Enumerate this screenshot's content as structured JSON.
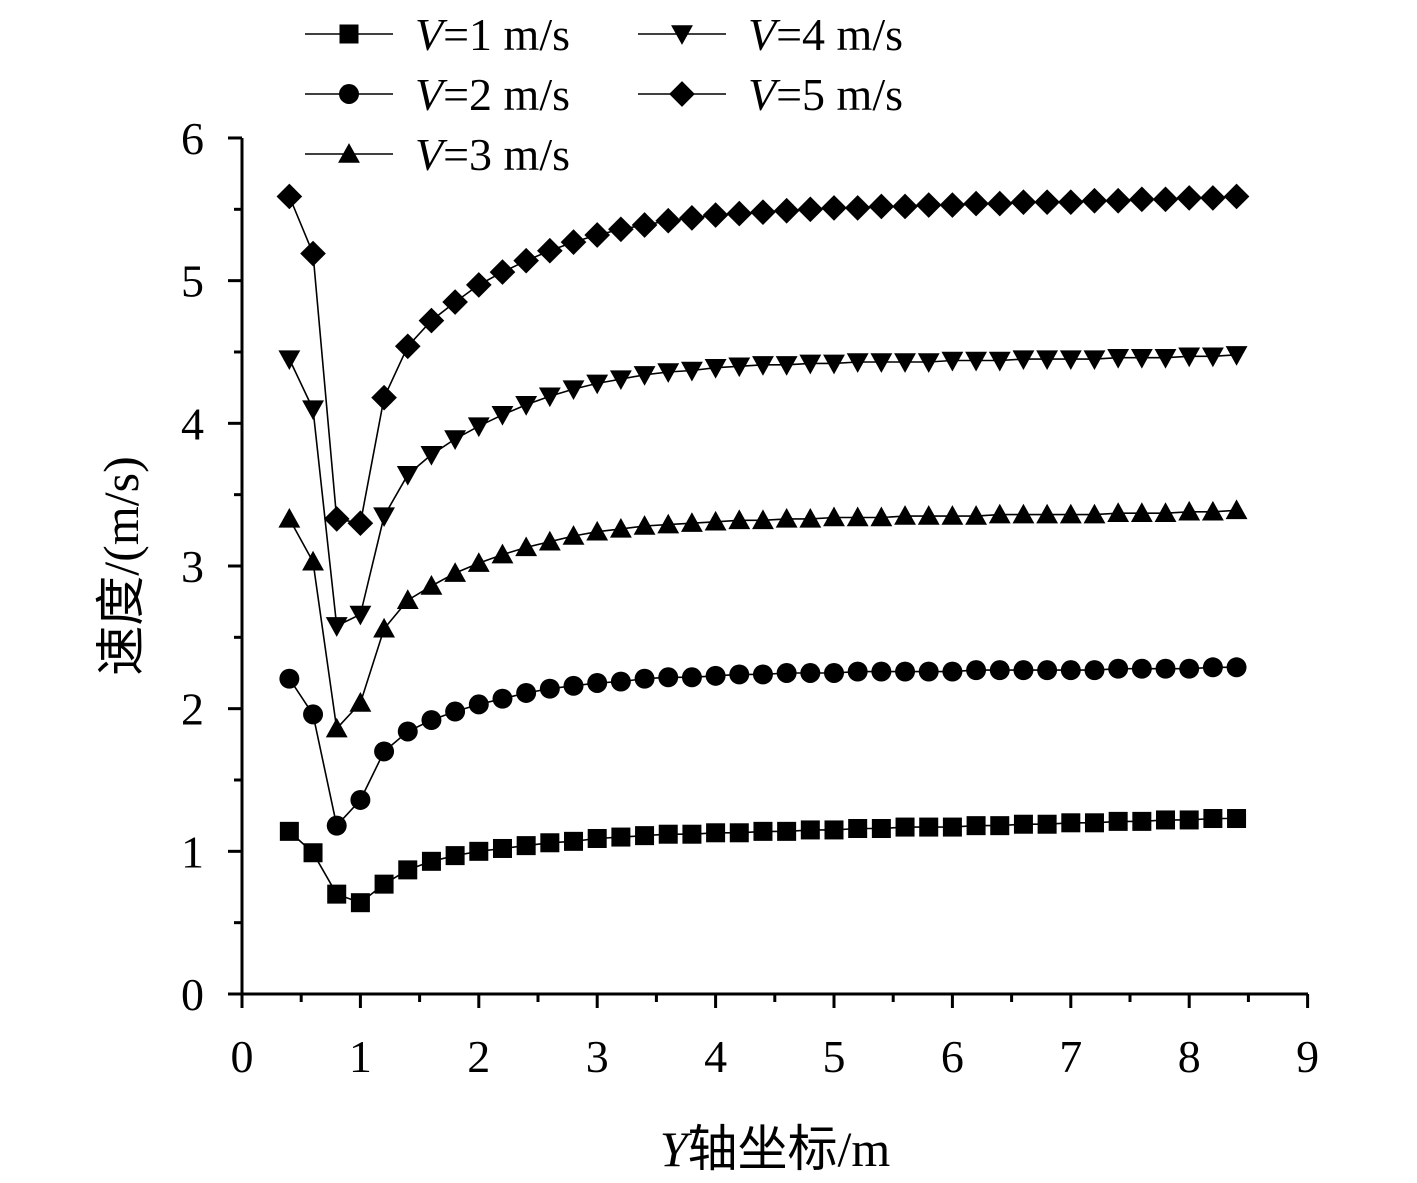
{
  "chart_data": {
    "type": "line",
    "xlabel_italic": "Y",
    "xlabel_rest": "轴坐标/m",
    "ylabel": "速度/(m/s)",
    "xlim": [
      0,
      9
    ],
    "ylim": [
      0,
      6
    ],
    "xticks": [
      "0",
      "1",
      "2",
      "3",
      "4",
      "5",
      "6",
      "7",
      "8",
      "9"
    ],
    "yticks": [
      "0",
      "1",
      "2",
      "3",
      "4",
      "5",
      "6"
    ],
    "grid": false,
    "legend_position": "top",
    "x": [
      0.4,
      0.6,
      0.8,
      1.0,
      1.2,
      1.4,
      1.6,
      1.8,
      2.0,
      2.2,
      2.4,
      2.6,
      2.8,
      3.0,
      3.2,
      3.4,
      3.6,
      3.8,
      4.0,
      4.2,
      4.4,
      4.6,
      4.8,
      5.0,
      5.2,
      5.4,
      5.6,
      5.8,
      6.0,
      6.2,
      6.4,
      6.6,
      6.8,
      7.0,
      7.2,
      7.4,
      7.6,
      7.8,
      8.0,
      8.2,
      8.4
    ],
    "series": [
      {
        "name_italic": "V",
        "name_rest": "=1 m/s",
        "marker": "square",
        "values": [
          1.14,
          0.99,
          0.7,
          0.64,
          0.77,
          0.87,
          0.93,
          0.97,
          1.0,
          1.02,
          1.04,
          1.06,
          1.07,
          1.09,
          1.1,
          1.11,
          1.12,
          1.12,
          1.13,
          1.13,
          1.14,
          1.14,
          1.15,
          1.15,
          1.16,
          1.16,
          1.17,
          1.17,
          1.17,
          1.18,
          1.18,
          1.19,
          1.19,
          1.2,
          1.2,
          1.21,
          1.21,
          1.22,
          1.22,
          1.23,
          1.23
        ]
      },
      {
        "name_italic": "V",
        "name_rest": "=2 m/s",
        "marker": "circle",
        "values": [
          2.21,
          1.96,
          1.18,
          1.36,
          1.7,
          1.84,
          1.92,
          1.98,
          2.03,
          2.07,
          2.11,
          2.14,
          2.16,
          2.18,
          2.19,
          2.21,
          2.22,
          2.22,
          2.23,
          2.24,
          2.24,
          2.25,
          2.25,
          2.25,
          2.26,
          2.26,
          2.26,
          2.26,
          2.26,
          2.27,
          2.27,
          2.27,
          2.27,
          2.27,
          2.27,
          2.28,
          2.28,
          2.28,
          2.28,
          2.29,
          2.29
        ]
      },
      {
        "name_italic": "V",
        "name_rest": "=3 m/s",
        "marker": "triangle-up",
        "values": [
          3.33,
          3.03,
          1.86,
          2.04,
          2.56,
          2.76,
          2.86,
          2.95,
          3.02,
          3.08,
          3.13,
          3.17,
          3.21,
          3.24,
          3.26,
          3.28,
          3.29,
          3.3,
          3.31,
          3.32,
          3.32,
          3.33,
          3.33,
          3.34,
          3.34,
          3.34,
          3.35,
          3.35,
          3.35,
          3.35,
          3.36,
          3.36,
          3.36,
          3.36,
          3.36,
          3.37,
          3.37,
          3.37,
          3.38,
          3.38,
          3.39
        ]
      },
      {
        "name_italic": "V",
        "name_rest": "=4 m/s",
        "marker": "triangle-down",
        "values": [
          4.45,
          4.1,
          2.58,
          2.66,
          3.35,
          3.64,
          3.78,
          3.89,
          3.98,
          4.06,
          4.13,
          4.19,
          4.24,
          4.28,
          4.31,
          4.34,
          4.36,
          4.37,
          4.39,
          4.4,
          4.41,
          4.41,
          4.42,
          4.42,
          4.43,
          4.43,
          4.43,
          4.43,
          4.44,
          4.44,
          4.44,
          4.45,
          4.45,
          4.45,
          4.45,
          4.46,
          4.46,
          4.46,
          4.47,
          4.47,
          4.48
        ]
      },
      {
        "name_italic": "V",
        "name_rest": "=5 m/s",
        "marker": "diamond",
        "values": [
          5.59,
          5.19,
          3.33,
          3.3,
          4.18,
          4.54,
          4.72,
          4.85,
          4.97,
          5.06,
          5.14,
          5.21,
          5.27,
          5.32,
          5.36,
          5.39,
          5.42,
          5.44,
          5.46,
          5.47,
          5.48,
          5.49,
          5.5,
          5.51,
          5.51,
          5.52,
          5.52,
          5.53,
          5.53,
          5.54,
          5.54,
          5.55,
          5.55,
          5.55,
          5.56,
          5.56,
          5.57,
          5.57,
          5.58,
          5.58,
          5.59
        ]
      }
    ]
  }
}
